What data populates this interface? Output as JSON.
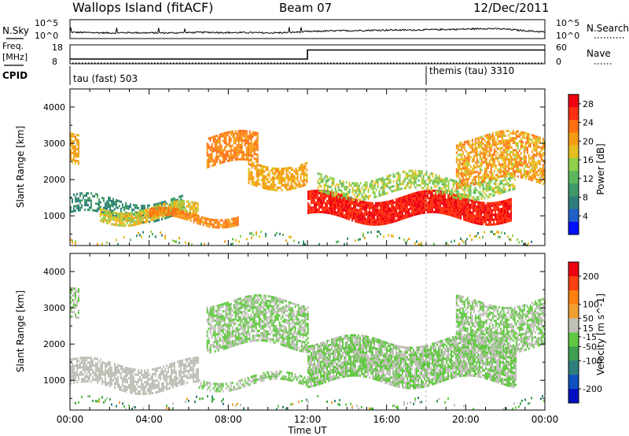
{
  "header": {
    "title": "Wallops Island (fitACF)",
    "beam": "Beam 07",
    "date": "12/Dec/2011"
  },
  "labels": {
    "nsky": "N.Sky",
    "nsearch": "N.Search",
    "freq": "Freq.",
    "freq_unit": "[MHz]",
    "nave": "Nave",
    "cpid": "CPID",
    "nsky_ticks": [
      "10^5",
      "10^0"
    ],
    "nsearch_ticks": [
      "10^5",
      "10^0"
    ],
    "freq_ticks": [
      "18",
      "8"
    ],
    "nave_ticks": [
      "60",
      "0"
    ]
  },
  "cpid": {
    "segments": [
      {
        "start_hour": 0,
        "label": "tau (fast) 503"
      },
      {
        "start_hour": 18,
        "label": "themis (tau) 3310"
      }
    ]
  },
  "colors": {
    "power": [
      "#0010ff",
      "#2060c8",
      "#2f7e7e",
      "#3f9a6a",
      "#5cb85c",
      "#8ed04a",
      "#e6c020",
      "#f59c14",
      "#ff7010",
      "#ff3010",
      "#ee0010"
    ],
    "velocity": [
      "#ee0010",
      "#ff4010",
      "#ff8010",
      "#f0a030",
      "#c0c0b8",
      "#60c840",
      "#3ca050",
      "#2f7e7e",
      "#1050c0",
      "#0010c0"
    ],
    "ground_scatter": "#b8b8b0"
  },
  "chart_data": [
    {
      "type": "line",
      "name": "sky-noise",
      "x_unit": "hours UT",
      "xlim": [
        0,
        24
      ],
      "series": [
        {
          "name": "N.Sky",
          "x": [
            0,
            1,
            2,
            3,
            4,
            5,
            6,
            7,
            8,
            9,
            10,
            11,
            12,
            13,
            14,
            15,
            16,
            17,
            18,
            19,
            20,
            21,
            22,
            23,
            24
          ],
          "values": [
            1.5,
            1.4,
            1.3,
            1.4,
            1.3,
            1.3,
            1.4,
            1.5,
            1.4,
            1.4,
            1.3,
            1.4,
            1.7,
            1.9,
            2.0,
            2.1,
            2.2,
            2.2,
            2.3,
            2.4,
            2.5,
            2.7,
            2.5,
            2.0,
            1.6
          ]
        }
      ],
      "ylim_labels": [
        "10^0",
        "10^5"
      ]
    },
    {
      "type": "line",
      "name": "frequency",
      "x_unit": "hours UT",
      "xlim": [
        0,
        24
      ],
      "ylim": [
        8,
        18
      ],
      "series": [
        {
          "name": "Freq.",
          "x": [
            0,
            12,
            12,
            24
          ],
          "values": [
            10.5,
            10.5,
            15.3,
            15.3
          ]
        }
      ]
    },
    {
      "type": "heatmap",
      "name": "power",
      "xlabel": "Time UT",
      "ylabel": "Slant Range [km]",
      "x_ticks": [
        "00:00",
        "04:00",
        "08:00",
        "12:00",
        "16:00",
        "20:00",
        "00:00"
      ],
      "y_ticks": [
        1000,
        2000,
        3000,
        4000
      ],
      "xlim": [
        0,
        24
      ],
      "ylim": [
        180,
        4500
      ],
      "colorbar": {
        "label": "Power [dB]",
        "ticks": [
          4,
          8,
          12,
          16,
          20,
          24,
          28
        ],
        "range": [
          0,
          30
        ]
      },
      "echo_bands": [
        {
          "t0": 0.0,
          "t1": 5.8,
          "r0": 1000,
          "r1": 1480,
          "v0": 6,
          "v1": 11,
          "density": 0.55
        },
        {
          "t0": 1.5,
          "t1": 6.5,
          "r0": 880,
          "r1": 1260,
          "v0": 14,
          "v1": 20,
          "density": 0.85
        },
        {
          "t0": 4.0,
          "t1": 8.5,
          "r0": 820,
          "r1": 1080,
          "v0": 20,
          "v1": 24,
          "density": 0.85
        },
        {
          "t0": 0.0,
          "t1": 0.4,
          "r0": 2600,
          "r1": 3400,
          "v0": 18,
          "v1": 22,
          "density": 0.75
        },
        {
          "t0": 6.9,
          "t1": 9.5,
          "r0": 2400,
          "r1": 3200,
          "v0": 20,
          "v1": 24,
          "density": 0.8
        },
        {
          "t0": 9.0,
          "t1": 12.0,
          "r0": 1900,
          "r1": 2500,
          "v0": 18,
          "v1": 22,
          "density": 0.7
        },
        {
          "t0": 12.0,
          "t1": 22.3,
          "r0": 950,
          "r1": 1550,
          "v0": 25,
          "v1": 29,
          "density": 0.95
        },
        {
          "t0": 12.5,
          "t1": 22.5,
          "r0": 1600,
          "r1": 2100,
          "v0": 12,
          "v1": 18,
          "density": 0.6
        },
        {
          "t0": 19.5,
          "t1": 24.0,
          "r0": 1900,
          "r1": 3200,
          "v0": 16,
          "v1": 24,
          "density": 0.7
        },
        {
          "t0": 0.0,
          "t1": 24.0,
          "r0": 250,
          "r1": 420,
          "v0": 6,
          "v1": 22,
          "density": 0.18
        }
      ]
    },
    {
      "type": "heatmap",
      "name": "velocity",
      "xlabel": "Time UT",
      "ylabel": "Slant Range [km]",
      "x_ticks": [
        "00:00",
        "04:00",
        "08:00",
        "12:00",
        "16:00",
        "20:00",
        "00:00"
      ],
      "y_ticks": [
        1000,
        2000,
        3000,
        4000
      ],
      "xlim": [
        0,
        24
      ],
      "ylim": [
        180,
        4500
      ],
      "colorbar": {
        "label": "Velocity [m s^-1]",
        "ticks": [
          200,
          100,
          50,
          15,
          -15,
          -50,
          -100,
          -200
        ],
        "range": [
          -250,
          250
        ]
      },
      "echo_bands": [
        {
          "t0": 0.0,
          "t1": 6.5,
          "r0": 780,
          "r1": 1480,
          "v0": 20,
          "v1": 45,
          "density": 0.7
        },
        {
          "t0": 0.0,
          "t1": 0.4,
          "r0": 2600,
          "r1": 3400,
          "v0": -5,
          "v1": 5,
          "density": 0.6
        },
        {
          "t0": 6.5,
          "t1": 12.0,
          "r0": 850,
          "r1": 1100,
          "v0": -5,
          "v1": 5,
          "density": 0.6
        },
        {
          "t0": 6.9,
          "t1": 12.0,
          "r0": 1900,
          "r1": 3200,
          "v0": -5,
          "v1": 5,
          "density": 0.75
        },
        {
          "t0": 12.0,
          "t1": 22.5,
          "r0": 950,
          "r1": 2100,
          "v0": -5,
          "v1": 5,
          "density": 0.85
        },
        {
          "t0": 19.5,
          "t1": 24.0,
          "r0": 1900,
          "r1": 3200,
          "v0": -5,
          "v1": 5,
          "density": 0.7
        },
        {
          "t0": 0.0,
          "t1": 24.0,
          "r0": 250,
          "r1": 420,
          "v0": -120,
          "v1": 60,
          "density": 0.15
        }
      ]
    }
  ]
}
